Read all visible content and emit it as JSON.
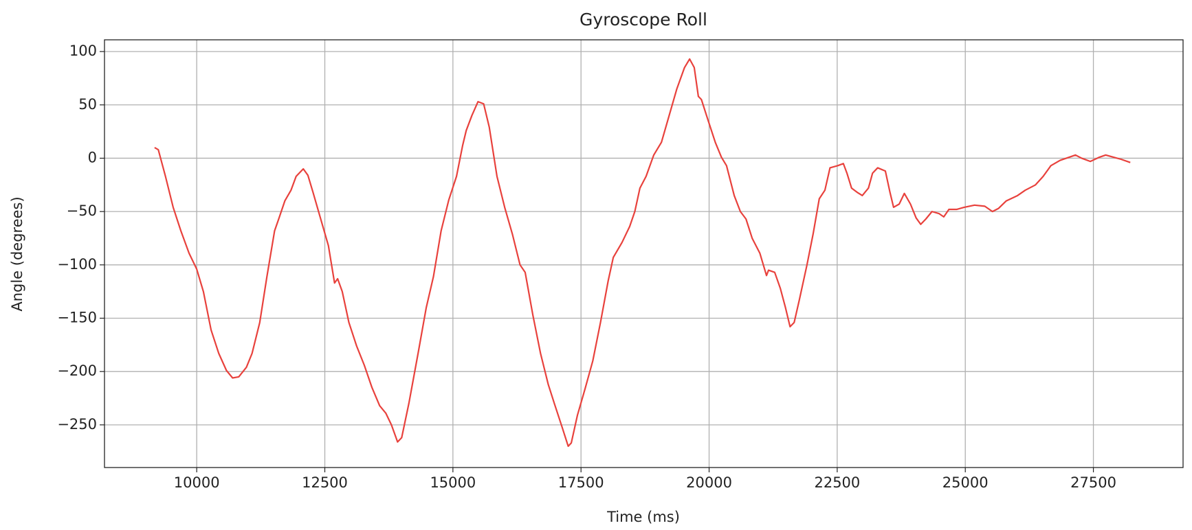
{
  "chart_data": {
    "type": "line",
    "title": "Gyroscope Roll",
    "x_label": "Time (ms)",
    "y_label": "Angle (degrees)",
    "x": [
      9178,
      9250,
      9390,
      9540,
      9690,
      9850,
      10000,
      10130,
      10280,
      10430,
      10580,
      10700,
      10820,
      10970,
      11080,
      11230,
      11370,
      11520,
      11600,
      11720,
      11840,
      11940,
      12080,
      12170,
      12270,
      12420,
      12570,
      12690,
      12750,
      12840,
      12970,
      13120,
      13270,
      13420,
      13570,
      13690,
      13800,
      13920,
      14000,
      14140,
      14320,
      14480,
      14620,
      14770,
      14920,
      15070,
      15190,
      15260,
      15370,
      15490,
      15600,
      15710,
      15860,
      16010,
      16160,
      16310,
      16410,
      16560,
      16710,
      16860,
      16980,
      17130,
      17250,
      17310,
      17430,
      17580,
      17730,
      17880,
      18030,
      18130,
      18300,
      18450,
      18550,
      18650,
      18770,
      18920,
      19070,
      19220,
      19370,
      19520,
      19620,
      19710,
      19790,
      19850,
      19970,
      20120,
      20240,
      20340,
      20490,
      20610,
      20720,
      20840,
      20990,
      21120,
      21160,
      21280,
      21390,
      21490,
      21580,
      21660,
      21760,
      21910,
      22030,
      22150,
      22260,
      22360,
      22510,
      22620,
      22690,
      22780,
      22890,
      22990,
      23110,
      23190,
      23290,
      23440,
      23530,
      23600,
      23710,
      23810,
      23930,
      24040,
      24130,
      24230,
      24350,
      24490,
      24580,
      24680,
      24830,
      24980,
      25180,
      25380,
      25530,
      25650,
      25800,
      26020,
      26170,
      26370,
      26520,
      26670,
      26850,
      27030,
      27150,
      27270,
      27440,
      27620,
      27740,
      27890,
      28040,
      28220
    ],
    "series": [
      {
        "name": "Roll",
        "color": "#e8413c",
        "values": [
          10,
          8,
          -17,
          -46,
          -68,
          -89,
          -104,
          -125,
          -161,
          -183,
          -199,
          -206,
          -205,
          -196,
          -183,
          -154,
          -111,
          -68,
          -57,
          -40,
          -30,
          -17,
          -10,
          -16,
          -32,
          -57,
          -82,
          -117,
          -113,
          -125,
          -154,
          -176,
          -194,
          -215,
          -232,
          -239,
          -250,
          -266,
          -262,
          -230,
          -183,
          -140,
          -111,
          -68,
          -39,
          -17,
          12,
          26,
          40,
          53,
          51,
          29,
          -17,
          -46,
          -71,
          -100,
          -107,
          -147,
          -183,
          -212,
          -230,
          -252,
          -270,
          -267,
          -241,
          -216,
          -190,
          -154,
          -115,
          -93,
          -79,
          -64,
          -50,
          -28,
          -17,
          3,
          15,
          40,
          65,
          85,
          93,
          85,
          58,
          55,
          37,
          15,
          1,
          -7,
          -35,
          -50,
          -57,
          -75,
          -89,
          -110,
          -105,
          -107,
          -122,
          -140,
          -158,
          -154,
          -133,
          -100,
          -71,
          -38,
          -30,
          -9,
          -7,
          -5,
          -14,
          -28,
          -32,
          -35,
          -28,
          -14,
          -9,
          -12,
          -32,
          -46,
          -43,
          -33,
          -43,
          -56,
          -62,
          -57,
          -50,
          -52,
          -55,
          -48,
          -48,
          -46,
          -44,
          -45,
          -50,
          -47,
          -40,
          -35,
          -30,
          -25,
          -17,
          -7,
          -2,
          1,
          3,
          0,
          -3,
          1,
          3,
          1,
          -1,
          -4
        ]
      }
    ],
    "xlim": [
      8200,
      29250
    ],
    "ylim": [
      -290,
      111
    ],
    "xticks": [
      10000,
      12500,
      15000,
      17500,
      20000,
      22500,
      25000,
      27500
    ],
    "yticks": [
      {
        "value": -250,
        "label": "−250"
      },
      {
        "value": -200,
        "label": "−200"
      },
      {
        "value": -150,
        "label": "−150"
      },
      {
        "value": -100,
        "label": "−100"
      },
      {
        "value": -50,
        "label": "−50"
      },
      0,
      50,
      100
    ],
    "grid": true
  }
}
